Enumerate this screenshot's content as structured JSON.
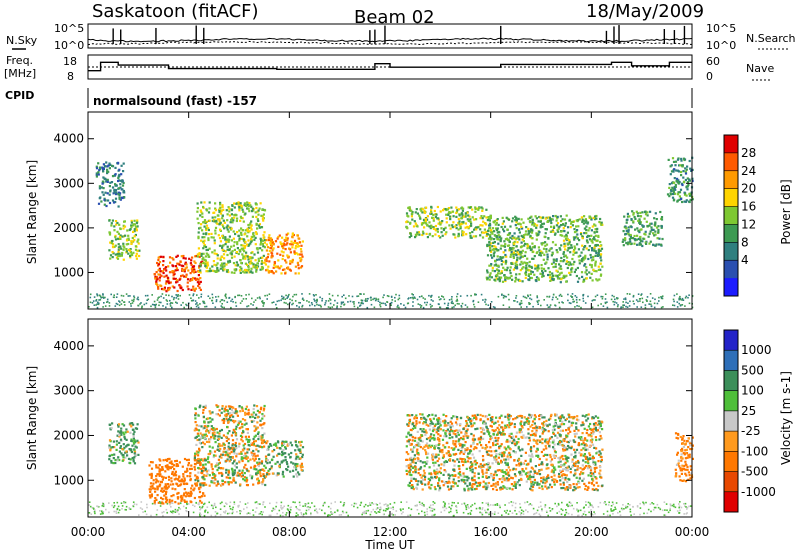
{
  "header": {
    "station": "Saskatoon (fitACF)",
    "beam": "Beam 02",
    "date": "18/May/2009"
  },
  "labels": {
    "nsky": "N.Sky",
    "nsearch": "N.Search",
    "freq": "Freq.",
    "mhz": "[MHz]",
    "nave": "Nave",
    "cpid": "CPID",
    "cpid_text": "normalsound (fast) -157",
    "xlabel": "Time UT",
    "ylabel_top": "Slant Range [km]",
    "ylabel_bottom": "Slant Range [km]",
    "cb_power_label": "Power [dB]",
    "cb_velocity_label": "Velocity [m s-1]"
  },
  "noise_panel": {
    "left_ticks": [
      "10^5",
      "10^0"
    ],
    "right_ticks": [
      "10^5",
      "10^0"
    ]
  },
  "freq_panel": {
    "left_ticks": [
      "18",
      "8"
    ],
    "right_ticks": [
      "60",
      "0"
    ],
    "freq_steps": [
      [
        0.0,
        12.5
      ],
      [
        0.5,
        18.5
      ],
      [
        1.2,
        16.5
      ],
      [
        2.8,
        16.5
      ],
      [
        3.2,
        14.0
      ],
      [
        7.5,
        13.5
      ],
      [
        11.2,
        13.5
      ],
      [
        11.4,
        17.5
      ],
      [
        12.0,
        15.0
      ],
      [
        16.2,
        15.0
      ],
      [
        16.4,
        17.0
      ],
      [
        20.6,
        17.0
      ],
      [
        20.8,
        18.5
      ],
      [
        21.6,
        16.0
      ],
      [
        22.9,
        16.0
      ],
      [
        23.1,
        18.5
      ],
      [
        24.0,
        18.5
      ]
    ],
    "nave_level": 30
  },
  "colorbars": {
    "power": {
      "ticks": [
        "28",
        "24",
        "20",
        "16",
        "12",
        "8",
        "4"
      ],
      "colors": [
        "#e00000",
        "#ff5a00",
        "#ff9a00",
        "#ffd400",
        "#7ec832",
        "#3d9a52",
        "#2f7f7f",
        "#2a4fb0",
        "#1c1cff"
      ]
    },
    "velocity": {
      "ticks": [
        "1000",
        "500",
        "100",
        "25",
        "-25",
        "-100",
        "-500",
        "-1000"
      ],
      "colors": [
        "#2323c8",
        "#2e6fb8",
        "#3c8f5a",
        "#4fbf3a",
        "#c8c8c8",
        "#ff9a1e",
        "#ff7800",
        "#e84800",
        "#e00000"
      ]
    }
  },
  "chart_data": {
    "type": "heatmap",
    "title": "Saskatoon (fitACF)",
    "xlabel": "Time UT",
    "ylabel": "Slant Range [km]",
    "x_range_hours": [
      0,
      24
    ],
    "y_range_km": [
      180,
      4600
    ],
    "x_ticks": [
      "00:00",
      "04:00",
      "08:00",
      "12:00",
      "16:00",
      "20:00",
      "00:00"
    ],
    "y_ticks": [
      "1000",
      "2000",
      "3000",
      "4000"
    ],
    "power_panel_bands": [
      {
        "t": [
          0.3,
          1.4
        ],
        "r": [
          2500,
          3500
        ],
        "power_db": 6
      },
      {
        "t": [
          0.8,
          2.0
        ],
        "r": [
          1300,
          2200
        ],
        "power_db": 14
      },
      {
        "t": [
          2.6,
          4.5
        ],
        "r": [
          600,
          1400
        ],
        "power_db": 27
      },
      {
        "t": [
          4.3,
          7.0
        ],
        "r": [
          1000,
          2600
        ],
        "power_db": 14
      },
      {
        "t": [
          7.0,
          8.5
        ],
        "r": [
          1000,
          1900
        ],
        "power_db": 22
      },
      {
        "t": [
          12.6,
          15.8
        ],
        "r": [
          1800,
          2500
        ],
        "power_db": 14
      },
      {
        "t": [
          15.8,
          20.4
        ],
        "r": [
          800,
          2300
        ],
        "power_db": 12
      },
      {
        "t": [
          21.2,
          22.8
        ],
        "r": [
          1600,
          2400
        ],
        "power_db": 10
      },
      {
        "t": [
          23.0,
          24.0
        ],
        "r": [
          2600,
          3600
        ],
        "power_db": 8
      }
    ],
    "velocity_panel_bands": [
      {
        "t": [
          2.4,
          4.6
        ],
        "r": [
          500,
          1500
        ],
        "velocity_ms": -300
      },
      {
        "t": [
          4.2,
          7.0
        ],
        "r": [
          900,
          2700
        ],
        "velocity_ms": 0
      },
      {
        "t": [
          0.8,
          2.0
        ],
        "r": [
          1400,
          2300
        ],
        "velocity_ms": 150
      },
      {
        "t": [
          7.0,
          8.5
        ],
        "r": [
          1100,
          1900
        ],
        "velocity_ms": 80
      },
      {
        "t": [
          12.6,
          20.4
        ],
        "r": [
          800,
          2500
        ],
        "velocity_ms": 0
      },
      {
        "t": [
          23.3,
          24.0
        ],
        "r": [
          1000,
          2100
        ],
        "velocity_ms": -200
      }
    ]
  }
}
